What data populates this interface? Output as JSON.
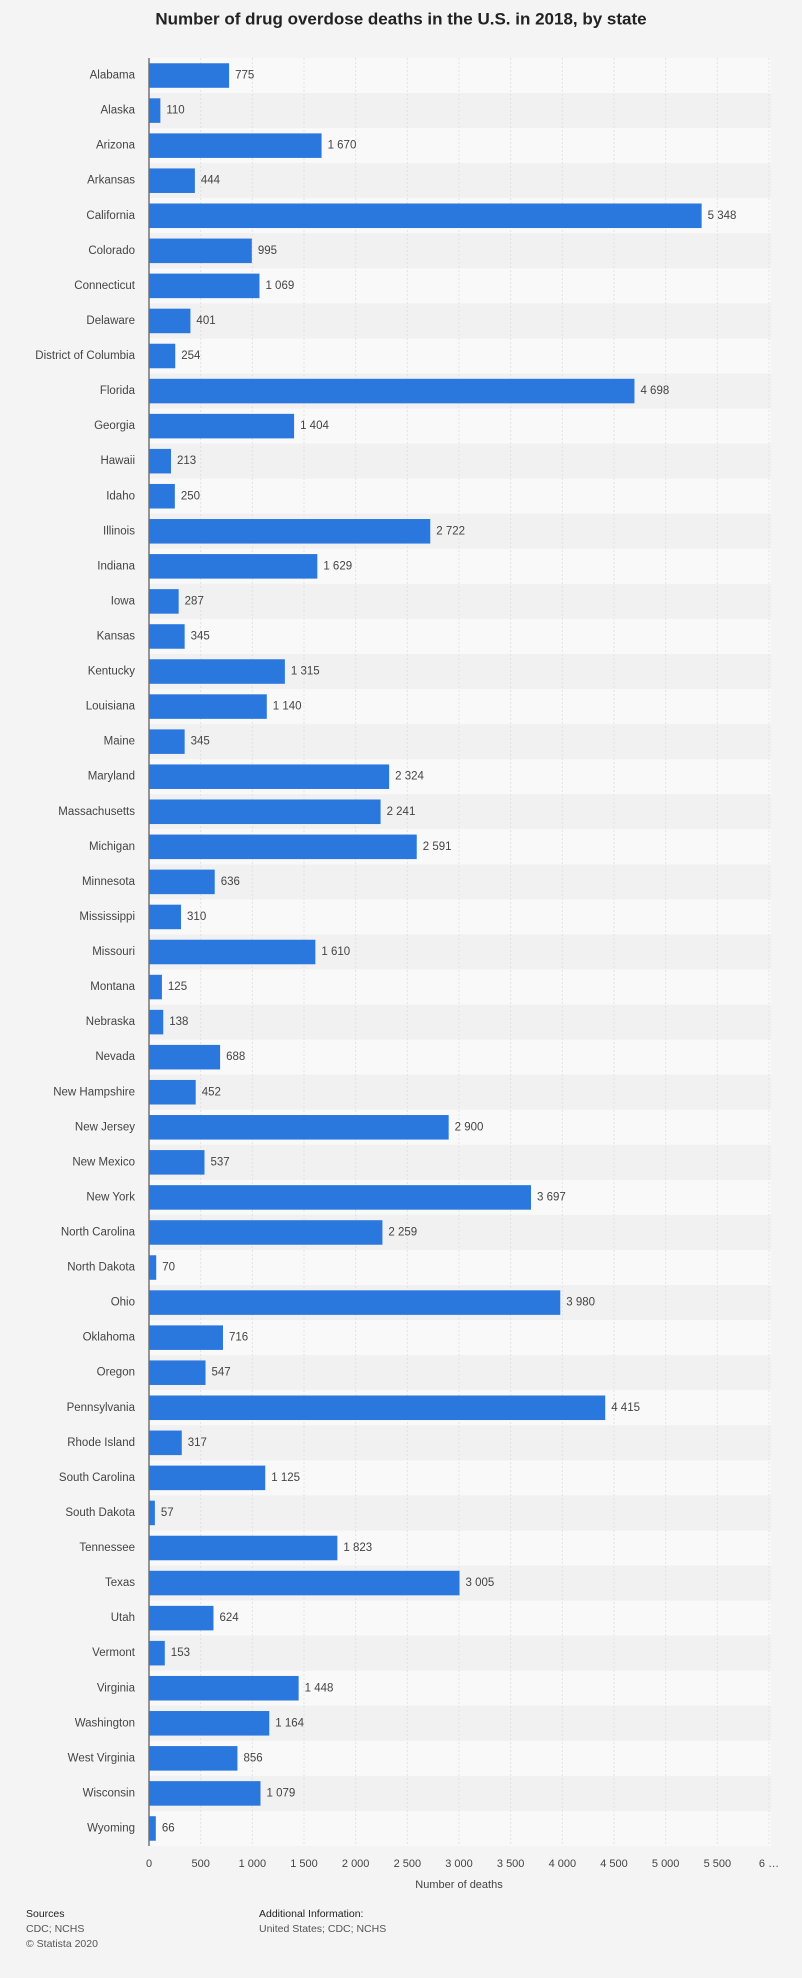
{
  "chart_data": {
    "type": "bar",
    "orientation": "horizontal",
    "title": "Number of drug overdose deaths in the U.S. in 2018, by state",
    "x_label": "Number of deaths",
    "categories": [
      "Alabama",
      "Alaska",
      "Arizona",
      "Arkansas",
      "California",
      "Colorado",
      "Connecticut",
      "Delaware",
      "District of Columbia",
      "Florida",
      "Georgia",
      "Hawaii",
      "Idaho",
      "Illinois",
      "Indiana",
      "Iowa",
      "Kansas",
      "Kentucky",
      "Louisiana",
      "Maine",
      "Maryland",
      "Massachusetts",
      "Michigan",
      "Minnesota",
      "Mississippi",
      "Missouri",
      "Montana",
      "Nebraska",
      "Nevada",
      "New Hampshire",
      "New Jersey",
      "New Mexico",
      "New York",
      "North Carolina",
      "North Dakota",
      "Ohio",
      "Oklahoma",
      "Oregon",
      "Pennsylvania",
      "Rhode Island",
      "South Carolina",
      "South Dakota",
      "Tennessee",
      "Texas",
      "Utah",
      "Vermont",
      "Virginia",
      "Washington",
      "West Virginia",
      "Wisconsin",
      "Wyoming"
    ],
    "values": [
      775,
      110,
      1670,
      444,
      5348,
      995,
      1069,
      401,
      254,
      4698,
      1404,
      213,
      250,
      2722,
      1629,
      287,
      345,
      1315,
      1140,
      345,
      2324,
      2241,
      2591,
      636,
      310,
      1610,
      125,
      138,
      688,
      452,
      2900,
      537,
      3697,
      2259,
      70,
      3980,
      716,
      547,
      4415,
      317,
      1125,
      57,
      1823,
      3005,
      624,
      153,
      1448,
      1164,
      856,
      1079,
      66
    ],
    "value_labels": [
      "775",
      "110",
      "1 670",
      "444",
      "5 348",
      "995",
      "1 069",
      "401",
      "254",
      "4 698",
      "1 404",
      "213",
      "250",
      "2 722",
      "1 629",
      "287",
      "345",
      "1 315",
      "1 140",
      "345",
      "2 324",
      "2 241",
      "2 591",
      "636",
      "310",
      "1 610",
      "125",
      "138",
      "688",
      "452",
      "2 900",
      "537",
      "3 697",
      "2 259",
      "70",
      "3 980",
      "716",
      "547",
      "4 415",
      "317",
      "1 125",
      "57",
      "1 823",
      "3 005",
      "624",
      "153",
      "1 448",
      "1 164",
      "856",
      "1 079",
      "66"
    ],
    "color": "#2a78de",
    "xlim": [
      0,
      6000
    ],
    "xticks": [
      0,
      500,
      {
        "value": 1000,
        "label": "1 000"
      },
      {
        "value": 1500,
        "label": "1 500"
      },
      {
        "value": 2000,
        "label": "2 000"
      },
      {
        "value": 2500,
        "label": "2 500"
      },
      {
        "value": 3000,
        "label": "3 000"
      },
      {
        "value": 3500,
        "label": "3 500"
      },
      {
        "value": 4000,
        "label": "4 000"
      },
      {
        "value": 4500,
        "label": "4 500"
      },
      {
        "value": 5000,
        "label": "5 000"
      },
      {
        "value": 5500,
        "label": "5 500"
      },
      {
        "value": 6000,
        "label": "6 …"
      }
    ],
    "grid": true
  },
  "footer": {
    "sources_title": "Sources",
    "sources": "CDC; NCHS",
    "copyright": "© Statista 2020",
    "info_title": "Additional Information:",
    "info": "United States; CDC; NCHS"
  }
}
